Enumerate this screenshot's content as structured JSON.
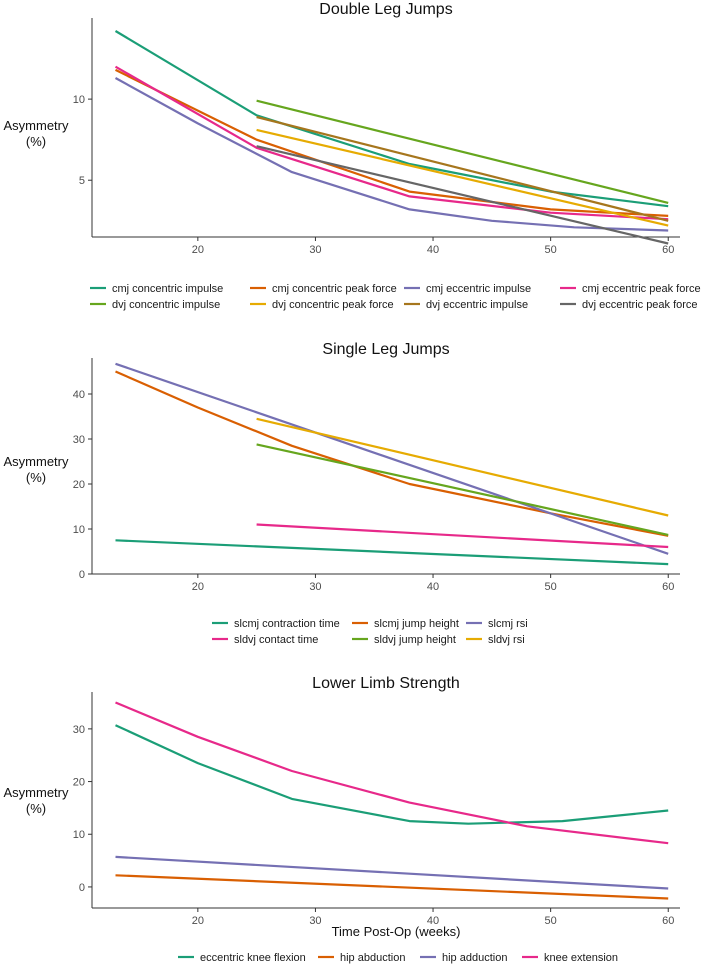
{
  "chart_data": [
    {
      "type": "line",
      "title": "Double Leg Jumps",
      "ylabel_lines": [
        "Asymmetry",
        "(%)"
      ],
      "xlabel": "",
      "xlim": [
        11,
        61
      ],
      "ylim": [
        1.5,
        15
      ],
      "xticks": [
        20,
        30,
        40,
        50,
        60
      ],
      "yticks": [
        5,
        10
      ],
      "series": [
        {
          "name": "cmj concentric impulse",
          "color": "#1B9E77",
          "x": [
            13,
            25,
            38,
            50,
            60
          ],
          "y": [
            14.2,
            9.0,
            6.0,
            4.3,
            3.4
          ]
        },
        {
          "name": "cmj concentric peak force",
          "color": "#D95F02",
          "x": [
            13,
            25,
            38,
            50,
            60
          ],
          "y": [
            11.8,
            7.5,
            4.3,
            3.2,
            2.8
          ]
        },
        {
          "name": "cmj eccentric  impulse",
          "color": "#7570B3",
          "x": [
            13,
            20,
            28,
            38,
            45,
            52,
            60
          ],
          "y": [
            11.3,
            8.5,
            5.5,
            3.2,
            2.5,
            2.1,
            1.9
          ]
        },
        {
          "name": "cmj eccentric peak force",
          "color": "#E7298A",
          "x": [
            13,
            25,
            38,
            50,
            60
          ],
          "y": [
            12.0,
            7.0,
            4.0,
            3.0,
            2.6
          ]
        },
        {
          "name": "dvj concentric impulse",
          "color": "#66A61E",
          "x": [
            25,
            60
          ],
          "y": [
            9.9,
            3.6
          ]
        },
        {
          "name": "dvj concentric peak force",
          "color": "#E6AB02",
          "x": [
            25,
            60
          ],
          "y": [
            8.1,
            2.2
          ]
        },
        {
          "name": "dvj eccentric impulse",
          "color": "#A6761D",
          "x": [
            25,
            60
          ],
          "y": [
            8.9,
            2.5
          ]
        },
        {
          "name": "dvj eccentric peak force",
          "color": "#666666",
          "x": [
            25,
            60
          ],
          "y": [
            7.1,
            1.1
          ]
        }
      ],
      "legend_position": "bottom"
    },
    {
      "type": "line",
      "title": "Single Leg Jumps",
      "ylabel_lines": [
        "Asymmetry",
        "(%)"
      ],
      "xlabel": "",
      "xlim": [
        11,
        61
      ],
      "ylim": [
        0,
        48
      ],
      "xticks": [
        20,
        30,
        40,
        50,
        60
      ],
      "yticks": [
        0,
        10,
        20,
        30,
        40
      ],
      "series": [
        {
          "name": "slcmj contraction time",
          "color": "#1B9E77",
          "x": [
            13,
            60
          ],
          "y": [
            7.5,
            2.2
          ]
        },
        {
          "name": "slcmj jump height",
          "color": "#D95F02",
          "x": [
            13,
            20,
            28,
            38,
            50,
            60
          ],
          "y": [
            45.0,
            37.0,
            28.5,
            20.0,
            13.5,
            8.5
          ]
        },
        {
          "name": "slcmj rsi",
          "color": "#7570B3",
          "x": [
            13,
            60
          ],
          "y": [
            46.7,
            4.5
          ]
        },
        {
          "name": "sldvj contact time",
          "color": "#E7298A",
          "x": [
            25,
            60
          ],
          "y": [
            11.0,
            6.0
          ]
        },
        {
          "name": "sldvj jump height",
          "color": "#66A61E",
          "x": [
            25,
            60
          ],
          "y": [
            28.8,
            8.7
          ]
        },
        {
          "name": "sldvj rsi",
          "color": "#E6AB02",
          "x": [
            25,
            60
          ],
          "y": [
            34.5,
            13.0
          ]
        }
      ],
      "legend_position": "bottom"
    },
    {
      "type": "line",
      "title": "Lower Limb Strength",
      "ylabel_lines": [
        "Asymmetry",
        "(%)"
      ],
      "xlabel": "Time Post-Op (weeks)",
      "xlim": [
        11,
        61
      ],
      "ylim": [
        -4,
        37
      ],
      "xticks": [
        20,
        30,
        40,
        50,
        60
      ],
      "yticks": [
        0,
        10,
        20,
        30
      ],
      "series": [
        {
          "name": "eccentric knee flexion",
          "color": "#1B9E77",
          "x": [
            13,
            20,
            28,
            38,
            43,
            51,
            60
          ],
          "y": [
            30.7,
            23.5,
            16.7,
            12.5,
            12.0,
            12.5,
            14.5
          ]
        },
        {
          "name": "hip abduction",
          "color": "#D95F02",
          "x": [
            13,
            60
          ],
          "y": [
            2.2,
            -2.2
          ]
        },
        {
          "name": "hip adduction",
          "color": "#7570B3",
          "x": [
            13,
            60
          ],
          "y": [
            5.7,
            -0.3
          ]
        },
        {
          "name": "knee extension",
          "color": "#E7298A",
          "x": [
            13,
            20,
            28,
            38,
            48,
            60
          ],
          "y": [
            35.0,
            28.5,
            22.0,
            16.0,
            11.5,
            8.3
          ]
        }
      ],
      "legend_position": "bottom"
    }
  ]
}
